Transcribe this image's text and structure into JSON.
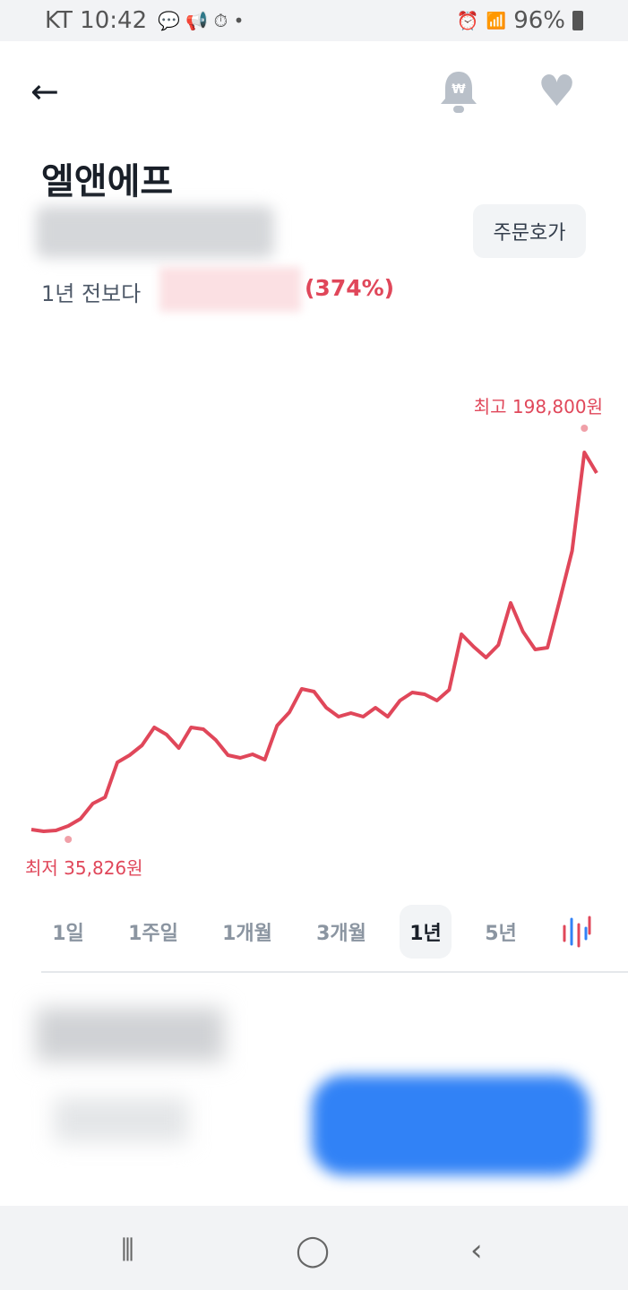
{
  "status_bar": {
    "carrier_time": "KT 10:42",
    "battery": "96%",
    "icons": [
      "kakaotalk-icon",
      "megaphone-icon",
      "timer-icon",
      "dot-icon",
      "alarm-icon",
      "wifi-icon",
      "hd-voice-icon",
      "signal-icon",
      "battery-icon"
    ]
  },
  "header": {
    "back_icon": "arrow-left-icon",
    "bell_icon": "price-alert-bell-icon",
    "heart_icon": "heart-icon"
  },
  "stock": {
    "name": "엘앤에프",
    "order_book_label": "주문호가",
    "compare_label": "1년 전보다",
    "change_percent": "(374%)"
  },
  "chart_data": {
    "type": "line",
    "color": "#e0475a",
    "max_label": "최고 198,800원",
    "min_label": "최저 35,826원",
    "values": [
      36600,
      35826,
      36200,
      38140,
      41220,
      47770,
      50470,
      65500,
      68580,
      72810,
      80520,
      77440,
      71660,
      80520,
      79750,
      75130,
      68580,
      67420,
      68960,
      66650,
      81290,
      87070,
      97090,
      95930,
      88990,
      85140,
      86690,
      85140,
      88990,
      85140,
      92080,
      95550,
      94780,
      92080,
      96700,
      120590,
      115200,
      110570,
      115970,
      134080,
      121750,
      114040,
      114810,
      135230,
      156420,
      198800,
      189940
    ]
  },
  "periods": [
    {
      "label": "1일"
    },
    {
      "label": "1주일"
    },
    {
      "label": "1개월"
    },
    {
      "label": "3개월"
    },
    {
      "label": "1년",
      "selected": true
    },
    {
      "label": "5년"
    }
  ],
  "chart_type_icon": "candlestick-chart-icon",
  "colors": {
    "up": "#e0475a",
    "accent": "#3182f6"
  }
}
